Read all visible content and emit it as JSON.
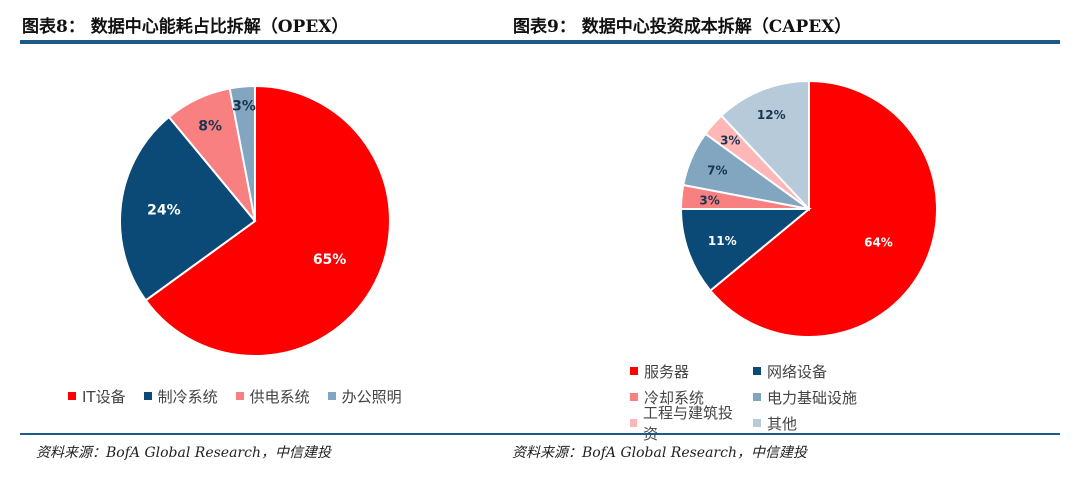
{
  "chart_data": [
    {
      "type": "pie",
      "title": "图表8： 数据中心能耗占比拆解（OPEX）",
      "source": "资料来源：BofA Global Research，中信建投",
      "categories": [
        "IT设备",
        "制冷系统",
        "供电系统",
        "办公照明"
      ],
      "values": [
        65,
        24,
        8,
        3
      ],
      "labels": [
        "65%",
        "24%",
        "8%",
        "3%"
      ],
      "colors": [
        "#fe0000",
        "#0b4a76",
        "#f88080",
        "#82a5c0"
      ],
      "legend_position": "bottom"
    },
    {
      "type": "pie",
      "title": "图表9： 数据中心投资成本拆解（CAPEX）",
      "source": "资料来源：BofA Global Research，中信建投",
      "categories": [
        "服务器",
        "网络设备",
        "冷却系统",
        "电力基础设施",
        "工程与建筑投资",
        "其他"
      ],
      "values": [
        64,
        11,
        3,
        7,
        3,
        12
      ],
      "labels": [
        "64%",
        "11%",
        "3%",
        "7%",
        "3%",
        "12%"
      ],
      "colors": [
        "#fe0000",
        "#0b4a76",
        "#f88080",
        "#82a5c0",
        "#ffb6b6",
        "#b6cad9"
      ],
      "legend_position": "bottom"
    }
  ]
}
